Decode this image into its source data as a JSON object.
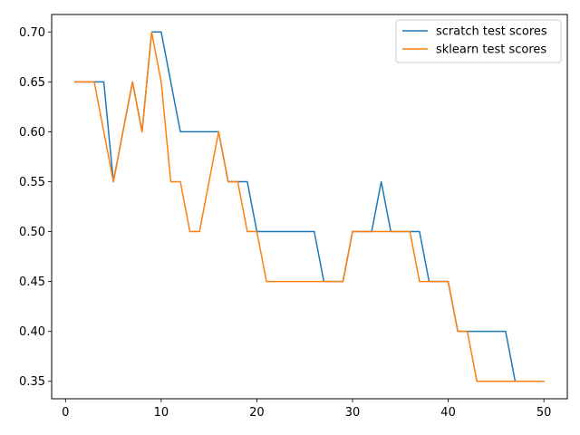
{
  "chart_data": {
    "type": "line",
    "title": "",
    "xlabel": "",
    "ylabel": "",
    "xlim": [
      -1.45,
      52.45
    ],
    "ylim": [
      0.3325,
      0.7175
    ],
    "xticks": [
      0,
      10,
      20,
      30,
      40,
      50
    ],
    "xtick_labels": [
      "0",
      "10",
      "20",
      "30",
      "40",
      "50"
    ],
    "yticks": [
      0.35,
      0.4,
      0.45,
      0.5,
      0.55,
      0.6,
      0.65,
      0.7
    ],
    "ytick_labels": [
      "0.35",
      "0.40",
      "0.45",
      "0.50",
      "0.55",
      "0.60",
      "0.65",
      "0.70"
    ],
    "grid": false,
    "legend_position": "top-right",
    "x": [
      1,
      2,
      3,
      4,
      5,
      6,
      7,
      8,
      9,
      10,
      11,
      12,
      13,
      14,
      15,
      16,
      17,
      18,
      19,
      20,
      21,
      22,
      23,
      24,
      25,
      26,
      27,
      28,
      29,
      30,
      31,
      32,
      33,
      34,
      35,
      36,
      37,
      38,
      39,
      40,
      41,
      42,
      43,
      44,
      45,
      46,
      47,
      48,
      49,
      50
    ],
    "series": [
      {
        "name": "scratch test scores",
        "color": "#1f77b4",
        "values": [
          0.65,
          0.65,
          0.65,
          0.65,
          0.55,
          0.6,
          0.65,
          0.6,
          0.7,
          0.7,
          0.65,
          0.6,
          0.6,
          0.6,
          0.6,
          0.6,
          0.55,
          0.55,
          0.55,
          0.5,
          0.5,
          0.5,
          0.5,
          0.5,
          0.5,
          0.5,
          0.45,
          0.45,
          0.45,
          0.5,
          0.5,
          0.5,
          0.55,
          0.5,
          0.5,
          0.5,
          0.5,
          0.45,
          0.45,
          0.45,
          0.4,
          0.4,
          0.4,
          0.4,
          0.4,
          0.4,
          0.35,
          0.35,
          0.35,
          0.35
        ]
      },
      {
        "name": "sklearn test scores",
        "color": "#ff7f0e",
        "values": [
          0.65,
          0.65,
          0.65,
          0.6,
          0.55,
          0.6,
          0.65,
          0.6,
          0.7,
          0.65,
          0.55,
          0.55,
          0.5,
          0.5,
          0.55,
          0.6,
          0.55,
          0.55,
          0.5,
          0.5,
          0.45,
          0.45,
          0.45,
          0.45,
          0.45,
          0.45,
          0.45,
          0.45,
          0.45,
          0.5,
          0.5,
          0.5,
          0.5,
          0.5,
          0.5,
          0.5,
          0.45,
          0.45,
          0.45,
          0.45,
          0.4,
          0.4,
          0.35,
          0.35,
          0.35,
          0.35,
          0.35,
          0.35,
          0.35,
          0.35
        ]
      }
    ]
  }
}
